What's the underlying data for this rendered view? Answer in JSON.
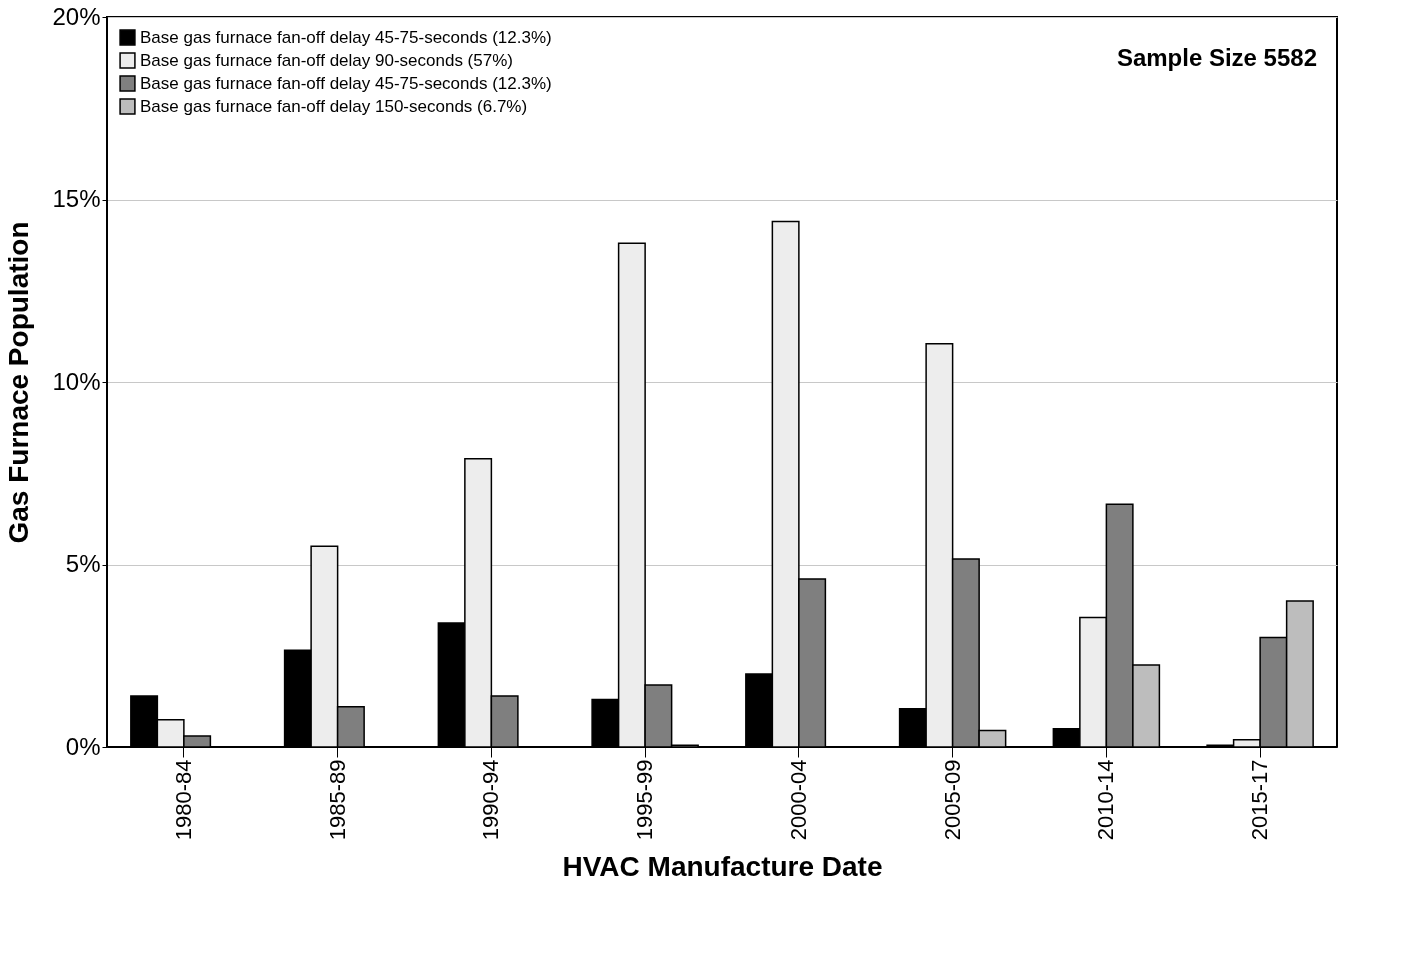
{
  "chart_data": {
    "type": "bar",
    "xlabel": "HVAC Manufacture Date",
    "ylabel": "Gas Furnace Population",
    "categories": [
      "1980-84",
      "1985-89",
      "1990-94",
      "1995-99",
      "2000-04",
      "2005-09",
      "2010-14",
      "2015-17"
    ],
    "series": [
      {
        "name": "Base gas furnace fan-off delay 45-75-seconds (12.3%)",
        "color": "#000000",
        "values": [
          1.4,
          2.65,
          3.4,
          1.3,
          2.0,
          1.05,
          0.5,
          0.05
        ]
      },
      {
        "name": "Base gas furnace fan-off delay 90-seconds (57%)",
        "color": "#ededed",
        "values": [
          0.75,
          5.5,
          7.9,
          13.8,
          14.4,
          11.05,
          3.55,
          0.2
        ]
      },
      {
        "name": "Base gas furnace fan-off delay 45-75-seconds (12.3%)",
        "color": "#7f7f7f",
        "values": [
          0.3,
          1.1,
          1.4,
          1.7,
          4.6,
          5.15,
          6.65,
          3.0
        ]
      },
      {
        "name": "Base gas furnace fan-off delay 150-seconds (6.7%)",
        "color": "#bdbdbd",
        "values": [
          null,
          null,
          null,
          0.05,
          null,
          0.45,
          2.25,
          4.0
        ]
      }
    ],
    "ylim": [
      0,
      20
    ],
    "yticks": [
      {
        "value": 0,
        "label": "0%"
      },
      {
        "value": 5,
        "label": "5%"
      },
      {
        "value": 10,
        "label": "10%"
      },
      {
        "value": 15,
        "label": "15%"
      },
      {
        "value": 20,
        "label": "20%"
      }
    ],
    "grid": "y",
    "legend": "top left",
    "annotations": [
      "Sample Size 5582"
    ]
  }
}
